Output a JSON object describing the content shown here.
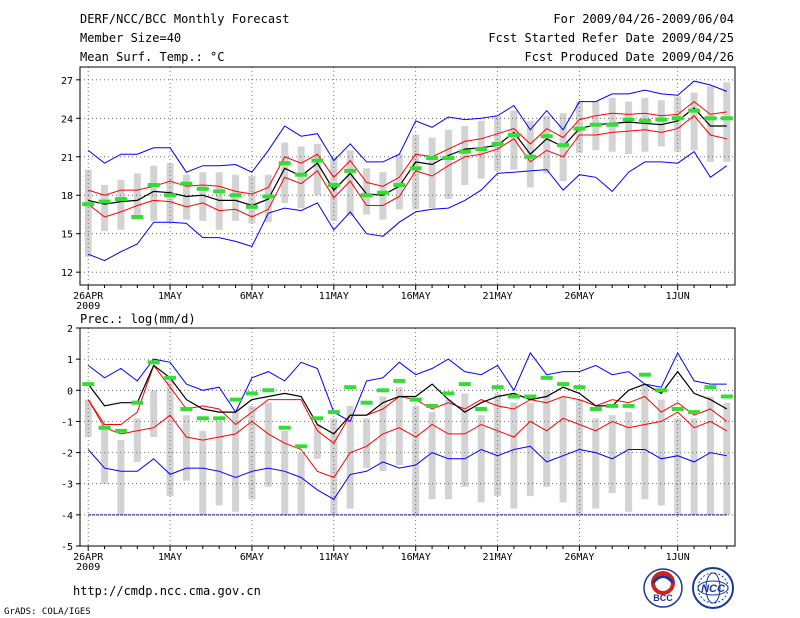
{
  "header": {
    "title": "DERF/NCC/BCC Monthly Forecast",
    "member_size": "Member Size=40",
    "variable": "Mean Surf. Temp.: °C",
    "period": "For 2009/04/26-2009/06/04",
    "started": "Fcst Started Refer Date 2009/04/25",
    "produced": "Fcst Produced Date 2009/04/26"
  },
  "footer": {
    "url": "http://cmdp.ncc.cma.gov.cn",
    "credit": "GrADS: COLA/IGES",
    "logo_left": "BCC",
    "logo_right": "NCC"
  },
  "colors": {
    "spread": "#d3d3d3",
    "extreme": "#0000ff",
    "quartile": "#ff0000",
    "median": "#000000",
    "mean": "#33dd33",
    "floor": "#000080"
  },
  "chart_data": [
    {
      "type": "line",
      "title": "Mean Surf. Temp.: °C",
      "x_labels": [
        "26APR",
        "1MAY",
        "6MAY",
        "11MAY",
        "16MAY",
        "21MAY",
        "26MAY",
        "1JUN"
      ],
      "x_label_days": [
        0,
        5,
        10,
        15,
        20,
        25,
        30,
        36
      ],
      "year_label": "2009",
      "xlim": [
        -0.5,
        39.5
      ],
      "ylim": [
        11,
        28
      ],
      "yticks": [
        12,
        15,
        18,
        21,
        24,
        27
      ],
      "ytick_labels": [
        "12",
        "15",
        "18",
        "21",
        "24",
        "27"
      ],
      "series": [
        {
          "name": "max",
          "values": [
            21.5,
            20.5,
            21.2,
            21.2,
            21.7,
            21.7,
            19.8,
            20.3,
            20.3,
            20.4,
            19.8,
            21.5,
            23.4,
            22.6,
            22.8,
            20.7,
            22.0,
            20.6,
            20.6,
            21.2,
            23.8,
            23.3,
            24.1,
            23.9,
            24.0,
            24.2,
            25.0,
            23.1,
            24.6,
            23.1,
            25.3,
            25.3,
            25.9,
            25.9,
            26.2,
            25.9,
            25.8,
            26.9,
            26.6,
            26.1
          ]
        },
        {
          "name": "upper_quartile",
          "values": [
            18.4,
            18.0,
            18.4,
            18.4,
            18.7,
            19.1,
            18.7,
            18.8,
            18.7,
            18.3,
            18.1,
            18.6,
            21.0,
            20.5,
            21.2,
            19.4,
            20.7,
            19.0,
            18.7,
            19.4,
            21.2,
            21.0,
            21.6,
            22.2,
            22.4,
            22.8,
            23.2,
            22.0,
            23.2,
            22.5,
            23.9,
            24.2,
            24.4,
            24.3,
            24.4,
            24.2,
            24.3,
            25.3,
            24.3,
            24.5
          ]
        },
        {
          "name": "median",
          "values": [
            17.6,
            17.3,
            17.5,
            17.6,
            18.3,
            18.2,
            17.9,
            18.0,
            17.6,
            17.6,
            17.2,
            17.7,
            20.1,
            19.5,
            20.5,
            18.4,
            19.7,
            18.1,
            18.0,
            18.7,
            20.6,
            20.4,
            21.1,
            21.6,
            21.7,
            21.9,
            22.9,
            21.2,
            22.4,
            21.8,
            23.2,
            23.5,
            23.6,
            23.7,
            23.6,
            23.5,
            23.8,
            24.8,
            23.4,
            23.4
          ]
        },
        {
          "name": "lower_quartile",
          "values": [
            17.3,
            16.3,
            16.7,
            17.2,
            17.6,
            17.5,
            17.1,
            17.4,
            16.8,
            16.9,
            16.3,
            16.9,
            19.4,
            18.9,
            19.9,
            17.8,
            19.1,
            17.2,
            17.2,
            17.9,
            19.9,
            19.5,
            20.3,
            21.0,
            21.2,
            21.6,
            22.4,
            20.6,
            21.5,
            21.0,
            22.7,
            22.7,
            22.9,
            23.0,
            23.1,
            22.9,
            23.2,
            24.2,
            22.7,
            22.4
          ]
        },
        {
          "name": "min",
          "values": [
            13.4,
            12.9,
            13.6,
            14.2,
            15.9,
            15.9,
            15.8,
            14.7,
            14.7,
            14.4,
            14.0,
            16.6,
            17.0,
            16.8,
            17.4,
            15.3,
            16.7,
            15.0,
            14.8,
            15.9,
            16.7,
            16.9,
            17.0,
            17.6,
            18.4,
            19.7,
            19.8,
            19.9,
            20.0,
            18.4,
            19.6,
            19.4,
            18.3,
            19.8,
            20.6,
            20.6,
            20.5,
            21.4,
            19.4,
            20.3
          ]
        },
        {
          "name": "ensemble_mean",
          "values": [
            17.3,
            17.5,
            17.7,
            16.3,
            18.8,
            18.0,
            18.9,
            18.5,
            18.3,
            18.0,
            17.1,
            17.9,
            20.5,
            19.6,
            20.7,
            18.8,
            19.9,
            18.0,
            18.2,
            18.8,
            20.1,
            20.9,
            20.9,
            21.4,
            21.6,
            22.0,
            22.7,
            21.0,
            22.6,
            21.9,
            23.2,
            23.5,
            23.5,
            23.9,
            23.8,
            23.9,
            24.0,
            24.6,
            24.0,
            24.0
          ]
        },
        {
          "name": "spread_top",
          "values": [
            20.0,
            18.8,
            19.2,
            19.7,
            20.3,
            20.5,
            19.6,
            19.8,
            19.8,
            19.6,
            19.5,
            19.6,
            22.1,
            21.8,
            22.0,
            21.0,
            21.5,
            20.1,
            19.8,
            21.2,
            22.7,
            22.5,
            23.1,
            23.4,
            23.8,
            24.2,
            24.6,
            23.8,
            24.2,
            24.4,
            25.3,
            25.3,
            25.6,
            25.3,
            25.6,
            25.4,
            25.7,
            26.0,
            26.5,
            26.8
          ]
        },
        {
          "name": "spread_bottom",
          "values": [
            13.2,
            15.2,
            15.3,
            16.2,
            16.0,
            15.9,
            16.1,
            16.0,
            15.3,
            16.0,
            15.8,
            15.9,
            17.4,
            17.0,
            18.0,
            16.0,
            16.4,
            16.5,
            16.1,
            16.9,
            16.9,
            17.0,
            17.7,
            18.8,
            19.3,
            19.9,
            20.0,
            18.6,
            19.7,
            19.1,
            21.3,
            21.5,
            21.4,
            21.2,
            21.4,
            21.8,
            21.4,
            21.5,
            20.6,
            20.6
          ]
        }
      ]
    },
    {
      "type": "line",
      "title": "Prec.: log(mm/d)",
      "x_labels": [
        "26APR",
        "1MAY",
        "6MAY",
        "11MAY",
        "16MAY",
        "21MAY",
        "26MAY",
        "1JUN"
      ],
      "x_label_days": [
        0,
        5,
        10,
        15,
        20,
        25,
        30,
        36
      ],
      "year_label": "2009",
      "xlim": [
        -0.5,
        39.5
      ],
      "ylim": [
        -5,
        2
      ],
      "yticks": [
        -5,
        -4,
        -3,
        -2,
        -1,
        0,
        1,
        2
      ],
      "ytick_labels": [
        "-5",
        "-4",
        "-3",
        "-2",
        "-1",
        "0",
        "1",
        "2"
      ],
      "series": [
        {
          "name": "max",
          "values": [
            0.8,
            0.4,
            0.7,
            0.3,
            1.0,
            0.9,
            0.2,
            0.0,
            0.1,
            -0.7,
            0.4,
            0.6,
            0.3,
            0.9,
            0.7,
            -0.7,
            -1.0,
            0.3,
            0.4,
            0.9,
            0.5,
            0.7,
            1.0,
            0.6,
            0.5,
            0.8,
            0.0,
            1.2,
            0.5,
            0.6,
            0.6,
            0.8,
            0.5,
            0.6,
            0.2,
            0.1,
            1.2,
            0.3,
            0.2,
            0.2
          ]
        },
        {
          "name": "upper_quartile",
          "values": [
            -0.3,
            -1.1,
            -1.1,
            -0.7,
            0.8,
            0.1,
            -0.6,
            -0.5,
            -0.6,
            -1.1,
            -0.7,
            -0.3,
            -0.3,
            -0.3,
            -1.3,
            -1.7,
            -0.8,
            -0.8,
            -0.6,
            -0.2,
            -0.3,
            -0.6,
            -0.4,
            -0.6,
            -0.3,
            -0.5,
            -0.6,
            -0.3,
            -0.4,
            -0.2,
            -0.3,
            -0.5,
            -0.3,
            -0.4,
            -0.2,
            -0.7,
            -0.4,
            -0.8,
            -0.6,
            -1.0
          ]
        },
        {
          "name": "median",
          "values": [
            0.2,
            -0.5,
            -0.4,
            -0.4,
            0.8,
            0.4,
            -0.3,
            -0.6,
            -0.7,
            -0.7,
            -0.3,
            -0.2,
            -0.1,
            -0.2,
            -1.1,
            -1.4,
            -0.8,
            -0.8,
            -0.4,
            -0.2,
            -0.2,
            0.2,
            -0.3,
            -0.7,
            -0.4,
            -0.2,
            -0.1,
            -0.3,
            -0.2,
            0.1,
            -0.1,
            -0.5,
            -0.5,
            0.0,
            0.2,
            -0.1,
            0.6,
            -0.1,
            -0.3,
            -0.6
          ]
        },
        {
          "name": "lower_quartile",
          "values": [
            -0.3,
            -1.2,
            -1.4,
            -1.3,
            -1.2,
            -0.8,
            -1.5,
            -1.6,
            -1.5,
            -1.4,
            -1.0,
            -1.4,
            -1.7,
            -1.9,
            -2.6,
            -2.8,
            -2.0,
            -1.8,
            -1.4,
            -1.2,
            -1.5,
            -1.1,
            -1.4,
            -1.4,
            -1.1,
            -1.3,
            -1.5,
            -1.0,
            -1.3,
            -0.9,
            -1.1,
            -1.3,
            -1.0,
            -1.2,
            -1.1,
            -1.0,
            -0.7,
            -1.2,
            -1.0,
            -1.3
          ]
        },
        {
          "name": "min",
          "values": [
            -1.9,
            -2.5,
            -2.6,
            -2.6,
            -2.2,
            -2.7,
            -2.5,
            -2.5,
            -2.6,
            -2.8,
            -2.6,
            -2.5,
            -2.6,
            -2.8,
            -3.2,
            -3.5,
            -2.7,
            -2.6,
            -2.3,
            -2.5,
            -2.4,
            -2.0,
            -2.2,
            -2.2,
            -1.9,
            -2.1,
            -1.9,
            -1.8,
            -2.3,
            -2.1,
            -1.9,
            -2.0,
            -2.2,
            -1.9,
            -1.9,
            -2.2,
            -2.1,
            -2.3,
            -2.0,
            -2.1
          ]
        },
        {
          "name": "ensemble_mean",
          "values": [
            0.2,
            -1.2,
            -1.3,
            -0.4,
            0.9,
            0.4,
            -0.6,
            -0.9,
            -0.9,
            -0.3,
            -0.1,
            0.0,
            -1.2,
            -1.8,
            -0.9,
            -0.7,
            0.1,
            -0.4,
            0.0,
            0.3,
            -0.3,
            -0.5,
            -0.1,
            0.2,
            -0.6,
            0.1,
            -0.2,
            -0.2,
            0.4,
            0.2,
            0.1,
            -0.6,
            -0.5,
            -0.5,
            0.5,
            0.0,
            -0.6,
            -0.7,
            0.1,
            -0.2
          ]
        },
        {
          "name": "spread_top",
          "values": [
            -0.3,
            -1.2,
            -1.6,
            -0.9,
            0.0,
            0.3,
            -0.8,
            -1.3,
            -1.0,
            -0.7,
            -0.5,
            -0.4,
            -1.3,
            -2.0,
            -1.1,
            -0.9,
            -0.5,
            -0.9,
            -0.2,
            0.1,
            -0.5,
            -0.7,
            -0.3,
            -0.1,
            -0.8,
            -0.1,
            -0.4,
            -0.4,
            0.0,
            -0.2,
            -0.3,
            -0.9,
            -0.8,
            -0.7,
            0.2,
            -0.3,
            -0.9,
            -0.9,
            -0.2,
            -0.4
          ]
        },
        {
          "name": "spread_bottom",
          "values": [
            -1.5,
            -3.0,
            -4.0,
            -2.3,
            -1.5,
            -3.4,
            -2.9,
            -4.0,
            -3.7,
            -3.9,
            -3.5,
            -3.1,
            -4.0,
            -4.0,
            -2.2,
            -4.0,
            -3.8,
            -2.5,
            -2.6,
            -2.4,
            -4.0,
            -3.5,
            -3.5,
            -3.1,
            -3.6,
            -3.4,
            -3.8,
            -3.4,
            -3.1,
            -3.6,
            -4.0,
            -3.8,
            -3.3,
            -3.9,
            -3.5,
            -3.7,
            -4.0,
            -4.0,
            -4.0,
            -4.0
          ]
        },
        {
          "name": "floor",
          "values": [
            -4,
            -4,
            -4,
            -4,
            -4,
            -4,
            -4,
            -4,
            -4,
            -4,
            -4,
            -4,
            -4,
            -4,
            -4,
            -4,
            -4,
            -4,
            -4,
            -4,
            -4,
            -4,
            -4,
            -4,
            -4,
            -4,
            -4,
            -4,
            -4,
            -4,
            -4,
            -4,
            -4,
            -4,
            -4,
            -4,
            -4,
            -4,
            -4,
            -4
          ]
        }
      ]
    }
  ]
}
